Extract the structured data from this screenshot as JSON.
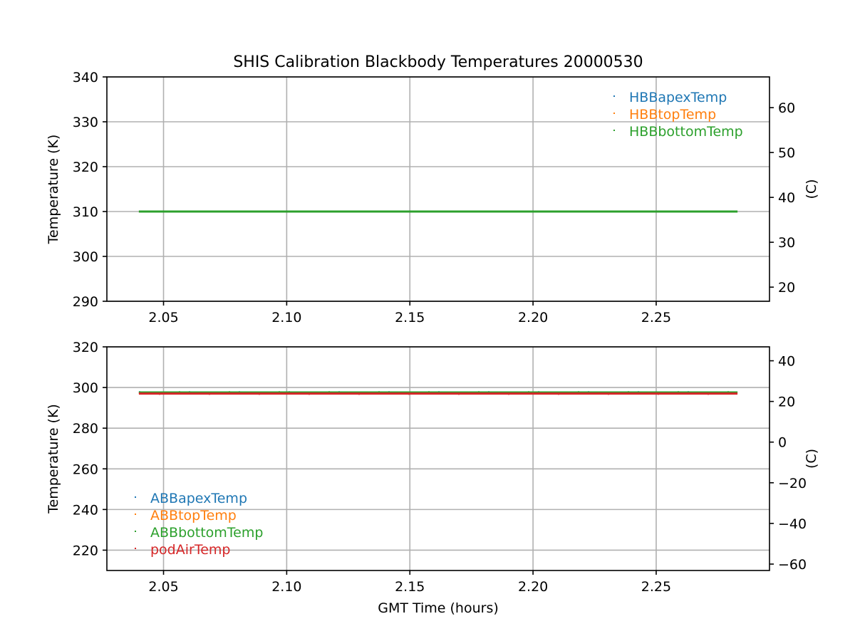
{
  "figure": {
    "title": "SHIS Calibration Blackbody Temperatures 20000530"
  },
  "colors": {
    "blue": "#1f77b4",
    "orange": "#ff7f0e",
    "green": "#2ca02c",
    "red": "#d62728",
    "grid": "#b0b0b0"
  },
  "chart_data": [
    {
      "type": "scatter",
      "title": "SHIS Calibration Blackbody Temperatures 20000530",
      "xlabel": "",
      "ylabel": "Temperature (K)",
      "y2label": "(C)",
      "xlim": [
        2.027,
        2.296
      ],
      "ylim": [
        290,
        340
      ],
      "y2lim": [
        16.85,
        66.85
      ],
      "xticks": [
        2.05,
        2.1,
        2.15,
        2.2,
        2.25
      ],
      "xtick_labels": [
        "2.05",
        "2.10",
        "2.15",
        "2.20",
        "2.25"
      ],
      "yticks": [
        290,
        300,
        310,
        320,
        330,
        340
      ],
      "ytick_labels": [
        "290",
        "300",
        "310",
        "320",
        "330",
        "340"
      ],
      "y2ticks": [
        20,
        30,
        40,
        50,
        60
      ],
      "y2tick_labels": [
        "20",
        "30",
        "40",
        "50",
        "60"
      ],
      "grid": true,
      "legend_position": "top-right",
      "x_range": [
        2.04,
        2.283
      ],
      "series": [
        {
          "name": "HBBapexTemp",
          "color": "#1f77b4",
          "value": 310.0
        },
        {
          "name": "HBBtopTemp",
          "color": "#ff7f0e",
          "value": 310.0
        },
        {
          "name": "HBBbottomTemp",
          "color": "#2ca02c",
          "value": 310.0
        }
      ]
    },
    {
      "type": "scatter",
      "title": "",
      "xlabel": "GMT Time (hours)",
      "ylabel": "Temperature (K)",
      "y2label": "(C)",
      "xlim": [
        2.027,
        2.296
      ],
      "ylim": [
        210,
        320
      ],
      "y2lim": [
        -63.15,
        46.85
      ],
      "xticks": [
        2.05,
        2.1,
        2.15,
        2.2,
        2.25
      ],
      "xtick_labels": [
        "2.05",
        "2.10",
        "2.15",
        "2.20",
        "2.25"
      ],
      "yticks": [
        220,
        240,
        260,
        280,
        300,
        320
      ],
      "ytick_labels": [
        "220",
        "240",
        "260",
        "280",
        "300",
        "320"
      ],
      "y2ticks": [
        -60,
        -40,
        -20,
        0,
        20,
        40
      ],
      "y2tick_labels": [
        "−60",
        "−40",
        "−20",
        "0",
        "20",
        "40"
      ],
      "grid": true,
      "legend_position": "lower-left",
      "x_range": [
        2.04,
        2.283
      ],
      "series": [
        {
          "name": "ABBapexTemp",
          "color": "#1f77b4",
          "value": 297.6
        },
        {
          "name": "ABBtopTemp",
          "color": "#ff7f0e",
          "value": 297.4
        },
        {
          "name": "ABBbottomTemp",
          "color": "#2ca02c",
          "value": 297.6
        },
        {
          "name": "podAirTemp",
          "color": "#d62728",
          "value": 297.0
        }
      ]
    }
  ]
}
